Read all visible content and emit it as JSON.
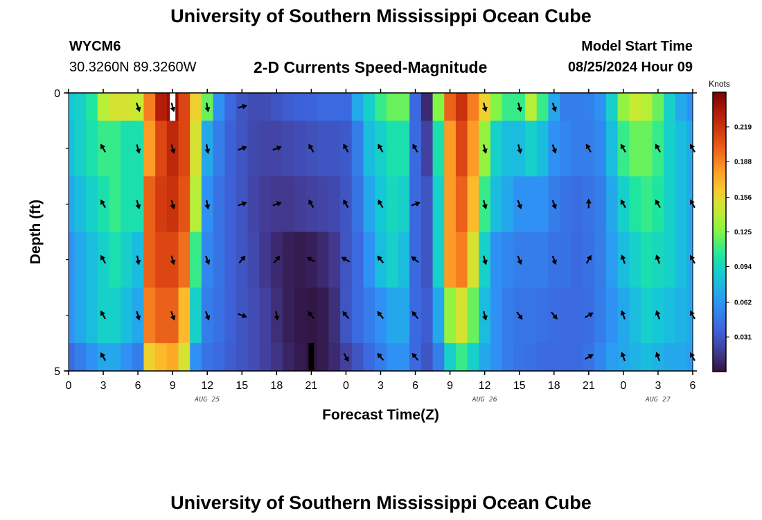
{
  "header": {
    "title": "University of Southern Mississippi Ocean Cube",
    "station_id": "WYCM6",
    "station_coords": "30.3260N  89.3260W",
    "subtitle": "2-D Currents Speed-Magnitude",
    "model_start_label": "Model Start Time",
    "model_start_value": "08/25/2024 Hour 09"
  },
  "footer": {
    "title": "University of Southern Mississippi Ocean Cube"
  },
  "chart_data": {
    "type": "heatmap",
    "title": "2-D Currents Speed-Magnitude",
    "xlabel": "Forecast Time(Z)",
    "ylabel": "Depth (ft)",
    "x_hours": [
      0,
      1,
      2,
      3,
      4,
      5,
      6,
      7,
      8,
      9,
      10,
      11,
      12,
      13,
      14,
      15,
      16,
      17,
      18,
      19,
      20,
      21,
      22,
      23,
      24,
      25,
      26,
      27,
      28,
      29,
      30,
      31,
      32,
      33,
      34,
      35,
      36,
      37,
      38,
      39,
      40,
      41,
      42,
      43,
      44,
      45,
      46,
      47,
      48,
      49,
      50,
      51,
      52,
      53,
      54
    ],
    "xlim": [
      0,
      54
    ],
    "x_tick_values": [
      0,
      3,
      6,
      9,
      12,
      15,
      18,
      21,
      24,
      27,
      30,
      33,
      36,
      39,
      42,
      45,
      48,
      51,
      54
    ],
    "x_tick_labels": [
      "0",
      "3",
      "6",
      "9",
      "12",
      "15",
      "18",
      "21",
      "0",
      "3",
      "6",
      "9",
      "12",
      "15",
      "18",
      "21",
      "0",
      "3",
      "6"
    ],
    "date_labels": [
      {
        "x": 12,
        "text": "AUG 25"
      },
      {
        "x": 36,
        "text": "AUG 26"
      },
      {
        "x": 51,
        "text": "AUG 27"
      }
    ],
    "ylim": [
      0,
      5
    ],
    "y_tick_labels": [
      {
        "value": 0,
        "label": "0"
      },
      {
        "value": 5,
        "label": "5"
      }
    ],
    "y_minor_ticks": [
      1,
      2,
      3,
      4
    ],
    "depth_levels": [
      0.25,
      1.0,
      2.0,
      3.0,
      4.0,
      4.75
    ],
    "level_edges": [
      0,
      0.5,
      1.5,
      2.5,
      3.5,
      4.5,
      5
    ],
    "speed_knots": [
      [
        0.085,
        0.09,
        0.105,
        0.14,
        0.15,
        0.15,
        0.145,
        0.19,
        0.23,
        0.24,
        0.21,
        0.16,
        0.12,
        0.06,
        0.04,
        0.03,
        0.026,
        0.026,
        0.03,
        0.034,
        0.036,
        0.037,
        0.04,
        0.04,
        0.04,
        0.07,
        0.09,
        0.11,
        0.12,
        0.12,
        0.04,
        0.01,
        0.125,
        0.2,
        0.22,
        0.19,
        0.16,
        0.125,
        0.11,
        0.11,
        0.14,
        0.11,
        0.07,
        0.05,
        0.05,
        0.052,
        0.06,
        0.09,
        0.13,
        0.145,
        0.14,
        0.12,
        0.09,
        0.07,
        0.06
      ],
      [
        0.08,
        0.09,
        0.1,
        0.11,
        0.11,
        0.1,
        0.1,
        0.18,
        0.21,
        0.225,
        0.21,
        0.15,
        0.07,
        0.05,
        0.036,
        0.03,
        0.024,
        0.022,
        0.022,
        0.024,
        0.026,
        0.028,
        0.03,
        0.03,
        0.032,
        0.05,
        0.08,
        0.09,
        0.1,
        0.1,
        0.04,
        0.02,
        0.1,
        0.18,
        0.21,
        0.18,
        0.13,
        0.09,
        0.08,
        0.08,
        0.09,
        0.08,
        0.06,
        0.055,
        0.05,
        0.05,
        0.056,
        0.08,
        0.11,
        0.12,
        0.12,
        0.11,
        0.09,
        0.08,
        0.07
      ],
      [
        0.07,
        0.08,
        0.09,
        0.1,
        0.11,
        0.1,
        0.1,
        0.2,
        0.215,
        0.22,
        0.205,
        0.14,
        0.06,
        0.045,
        0.036,
        0.03,
        0.022,
        0.018,
        0.016,
        0.016,
        0.018,
        0.02,
        0.022,
        0.024,
        0.03,
        0.045,
        0.07,
        0.085,
        0.095,
        0.09,
        0.04,
        0.03,
        0.09,
        0.18,
        0.2,
        0.17,
        0.11,
        0.08,
        0.07,
        0.06,
        0.06,
        0.06,
        0.05,
        0.045,
        0.042,
        0.045,
        0.05,
        0.07,
        0.09,
        0.105,
        0.11,
        0.105,
        0.09,
        0.08,
        0.07
      ],
      [
        0.06,
        0.07,
        0.08,
        0.09,
        0.1,
        0.09,
        0.08,
        0.2,
        0.21,
        0.21,
        0.195,
        0.11,
        0.055,
        0.045,
        0.036,
        0.03,
        0.024,
        0.016,
        0.01,
        0.006,
        0.004,
        0.006,
        0.01,
        0.016,
        0.03,
        0.04,
        0.06,
        0.08,
        0.09,
        0.08,
        0.04,
        0.03,
        0.09,
        0.18,
        0.19,
        0.15,
        0.09,
        0.06,
        0.055,
        0.05,
        0.05,
        0.05,
        0.045,
        0.044,
        0.04,
        0.044,
        0.05,
        0.065,
        0.08,
        0.09,
        0.1,
        0.095,
        0.09,
        0.08,
        0.07
      ],
      [
        0.06,
        0.07,
        0.08,
        0.09,
        0.09,
        0.08,
        0.07,
        0.19,
        0.2,
        0.2,
        0.17,
        0.09,
        0.05,
        0.044,
        0.036,
        0.03,
        0.026,
        0.02,
        0.012,
        0.006,
        0.003,
        0.002,
        0.004,
        0.012,
        0.03,
        0.04,
        0.05,
        0.06,
        0.07,
        0.07,
        0.04,
        0.034,
        0.07,
        0.13,
        0.15,
        0.12,
        0.08,
        0.06,
        0.05,
        0.046,
        0.046,
        0.044,
        0.042,
        0.04,
        0.04,
        0.042,
        0.05,
        0.06,
        0.07,
        0.08,
        0.09,
        0.085,
        0.08,
        0.075,
        0.07
      ],
      [
        0.04,
        0.05,
        0.06,
        0.07,
        0.07,
        0.06,
        0.05,
        0.16,
        0.17,
        0.175,
        0.15,
        0.06,
        0.045,
        0.04,
        0.034,
        0.03,
        0.026,
        0.02,
        0.014,
        0.008,
        0.004,
        0.001,
        0.004,
        0.01,
        0.02,
        0.03,
        0.04,
        0.05,
        0.06,
        0.06,
        0.04,
        0.03,
        0.05,
        0.09,
        0.11,
        0.09,
        0.07,
        0.06,
        0.05,
        0.045,
        0.044,
        0.04,
        0.04,
        0.04,
        0.04,
        0.045,
        0.055,
        0.065,
        0.07,
        0.075,
        0.08,
        0.075,
        0.07,
        0.07,
        0.065
      ]
    ],
    "missing_cells": [
      {
        "hour": 9,
        "level": 0,
        "color": "#ffffff"
      },
      {
        "hour": 21,
        "level": 5,
        "color": "#000000"
      }
    ],
    "vector_levels": [
      0,
      1,
      2,
      3,
      4,
      5
    ],
    "vector_hours": [
      3,
      6,
      9,
      12,
      15,
      18,
      21,
      24,
      27,
      30,
      33,
      36,
      39,
      42,
      45,
      48,
      51,
      54
    ],
    "vector_dirs_deg": [
      [
        null,
        160,
        165,
        170,
        75,
        null,
        null,
        null,
        null,
        null,
        null,
        165,
        165,
        160,
        null,
        null,
        null,
        null
      ],
      [
        -30,
        165,
        165,
        170,
        70,
        70,
        -30,
        -30,
        -30,
        -30,
        null,
        165,
        165,
        160,
        -30,
        -30,
        -30,
        -30
      ],
      [
        -30,
        165,
        165,
        170,
        70,
        70,
        -30,
        -30,
        -30,
        70,
        null,
        165,
        160,
        160,
        0,
        -30,
        -30,
        -30
      ],
      [
        -30,
        170,
        165,
        160,
        40,
        40,
        -60,
        -60,
        -40,
        -50,
        null,
        165,
        160,
        160,
        30,
        -20,
        -20,
        -30
      ],
      [
        -30,
        165,
        160,
        160,
        110,
        170,
        -40,
        -40,
        -40,
        -40,
        null,
        165,
        145,
        140,
        60,
        -20,
        -20,
        -30
      ],
      [
        -30,
        null,
        null,
        null,
        null,
        null,
        null,
        150,
        -40,
        -40,
        null,
        null,
        null,
        null,
        60,
        -20,
        -20,
        -30
      ]
    ],
    "colorbar": {
      "title": "Knots",
      "min": 0.0,
      "max": 0.25,
      "tick_values": [
        0.031,
        0.062,
        0.094,
        0.125,
        0.156,
        0.188,
        0.219
      ],
      "tick_labels": [
        "0.031",
        "0.062",
        "0.094",
        "0.125",
        "0.156",
        "0.188",
        "0.219"
      ]
    }
  }
}
